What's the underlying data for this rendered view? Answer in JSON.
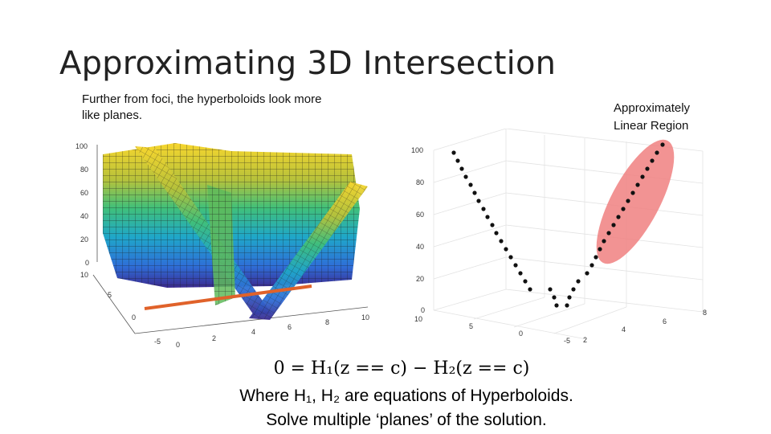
{
  "slide": {
    "title": "Approximating 3D Intersection",
    "left_caption": "Further from foci, the hyperboloids look more like planes.",
    "right_caption_line1": "Approximately",
    "right_caption_line2": "Linear Region"
  },
  "equation": {
    "line1": "0 = H₁(z == c) − H₂(z == c)",
    "line2": "Where H₁, H₂ are equations of Hyperboloids.",
    "line3": "Solve multiple ‘planes’ of the solution."
  },
  "left_plot": {
    "z_ticks": [
      "100",
      "80",
      "60",
      "40",
      "20",
      "0"
    ],
    "y_ticks": [
      "10",
      "5",
      "0",
      "-5"
    ],
    "x_ticks": [
      "0",
      "2",
      "4",
      "6",
      "8",
      "10"
    ]
  },
  "right_plot": {
    "z_ticks": [
      "100",
      "80",
      "60",
      "40",
      "20",
      "0"
    ],
    "y_ticks": [
      "10",
      "5",
      "0",
      "-5"
    ],
    "x_ticks": [
      "2",
      "4",
      "6",
      "8"
    ],
    "highlight_color": "#f08080"
  }
}
